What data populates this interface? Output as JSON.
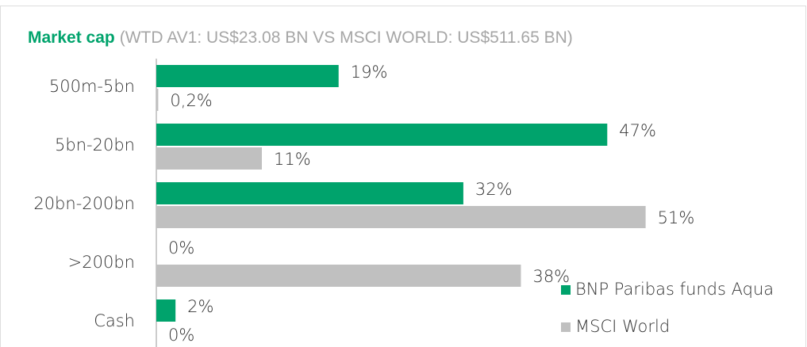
{
  "chart_data": {
    "type": "hbar",
    "title": "Market cap",
    "subtitle": "(WTD AV1: US$23.08 BN VS MSCI WORLD: US$511.65 BN)",
    "categories": [
      "500m-5bn",
      "5bn-20bn",
      "20bn-200bn",
      ">200bn",
      "Cash"
    ],
    "series": [
      {
        "name": "BNP Paribas funds Aqua",
        "color": "#00a36c",
        "values": [
          19,
          47,
          32,
          0,
          2
        ],
        "value_labels": [
          "19%",
          "47%",
          "32%",
          "0%",
          "2%"
        ]
      },
      {
        "name": "MSCI World",
        "color": "#c0c0c0",
        "values": [
          0.2,
          11,
          51,
          38,
          0
        ],
        "value_labels": [
          "0,2%",
          "11%",
          "51%",
          "38%",
          "0%"
        ]
      }
    ],
    "xlim": [
      0,
      66
    ],
    "legend": "lower right"
  }
}
